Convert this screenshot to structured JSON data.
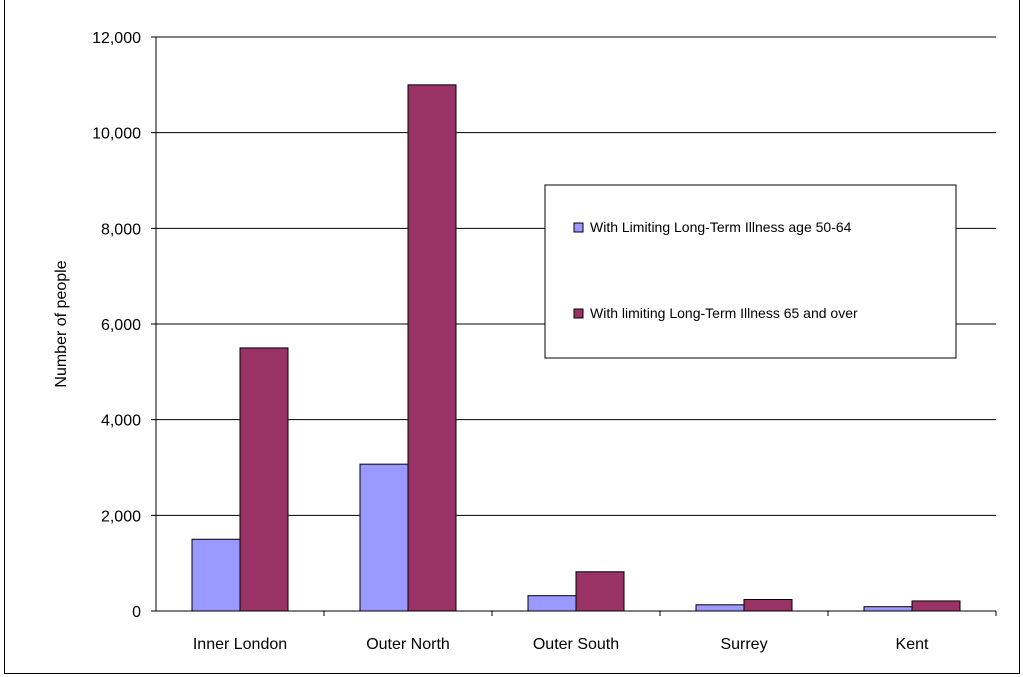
{
  "chart_data": {
    "type": "bar",
    "title": "",
    "xlabel": "",
    "ylabel": "Number of people",
    "ylim": [
      0,
      12000
    ],
    "yticks": [
      "0",
      "2,000",
      "4,000",
      "6,000",
      "8,000",
      "10,000",
      "12,000"
    ],
    "ytick_values": [
      0,
      2000,
      4000,
      6000,
      8000,
      10000,
      12000
    ],
    "grid": true,
    "legend_position": "right",
    "categories": [
      "Inner London",
      "Outer North",
      "Outer South",
      "Surrey",
      "Kent"
    ],
    "series": [
      {
        "name": "With Limiting Long-Term Illness age 50-64",
        "color": "#9999ff",
        "values": [
          1500,
          3070,
          320,
          130,
          90
        ]
      },
      {
        "name": "With limiting Long-Term Illness 65 and over",
        "color": "#993366",
        "values": [
          5500,
          11000,
          820,
          240,
          210
        ]
      }
    ]
  }
}
